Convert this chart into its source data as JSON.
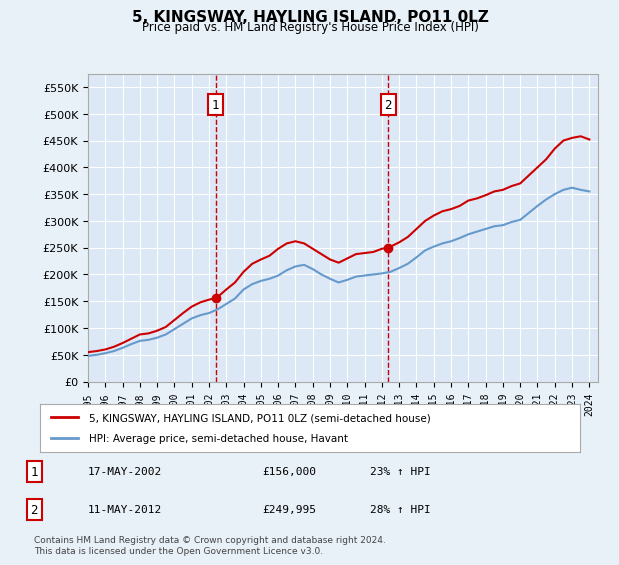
{
  "title": "5, KINGSWAY, HAYLING ISLAND, PO11 0LZ",
  "subtitle": "Price paid vs. HM Land Registry's House Price Index (HPI)",
  "background_color": "#e8f0f8",
  "plot_bg_color": "#dce8f5",
  "ylim": [
    0,
    575000
  ],
  "yticks": [
    0,
    50000,
    100000,
    150000,
    200000,
    250000,
    300000,
    350000,
    400000,
    450000,
    500000,
    550000
  ],
  "ytick_labels": [
    "£0",
    "£50K",
    "£100K",
    "£150K",
    "£200K",
    "£250K",
    "£300K",
    "£350K",
    "£400K",
    "£450K",
    "£500K",
    "£550K"
  ],
  "legend_label_red": "5, KINGSWAY, HAYLING ISLAND, PO11 0LZ (semi-detached house)",
  "legend_label_blue": "HPI: Average price, semi-detached house, Havant",
  "footnote": "Contains HM Land Registry data © Crown copyright and database right 2024.\nThis data is licensed under the Open Government Licence v3.0.",
  "marker1_date": "17-MAY-2002",
  "marker1_price": "£156,000",
  "marker1_hpi": "23% ↑ HPI",
  "marker1_year": 2002.38,
  "marker1_value": 156000,
  "marker2_date": "11-MAY-2012",
  "marker2_price": "£249,995",
  "marker2_hpi": "28% ↑ HPI",
  "marker2_year": 2012.37,
  "marker2_value": 249995,
  "red_line_color": "#cc0000",
  "blue_line_color": "#6699cc",
  "red_series_x": [
    1995.0,
    1995.5,
    1996.0,
    1996.5,
    1997.0,
    1997.5,
    1998.0,
    1998.5,
    1999.0,
    1999.5,
    2000.0,
    2000.5,
    2001.0,
    2001.5,
    2002.0,
    2002.38,
    2002.5,
    2003.0,
    2003.5,
    2004.0,
    2004.5,
    2005.0,
    2005.5,
    2006.0,
    2006.5,
    2007.0,
    2007.5,
    2008.0,
    2008.5,
    2009.0,
    2009.5,
    2010.0,
    2010.5,
    2011.0,
    2011.5,
    2012.0,
    2012.37,
    2012.5,
    2013.0,
    2013.5,
    2014.0,
    2014.5,
    2015.0,
    2015.5,
    2016.0,
    2016.5,
    2017.0,
    2017.5,
    2018.0,
    2018.5,
    2019.0,
    2019.5,
    2020.0,
    2020.5,
    2021.0,
    2021.5,
    2022.0,
    2022.5,
    2023.0,
    2023.5,
    2024.0
  ],
  "red_series_y": [
    55000,
    57000,
    60000,
    65000,
    72000,
    80000,
    88000,
    90000,
    95000,
    102000,
    115000,
    128000,
    140000,
    148000,
    153000,
    156000,
    158000,
    172000,
    185000,
    205000,
    220000,
    228000,
    235000,
    248000,
    258000,
    262000,
    258000,
    248000,
    238000,
    228000,
    222000,
    230000,
    238000,
    240000,
    242000,
    248000,
    249995,
    252000,
    260000,
    270000,
    285000,
    300000,
    310000,
    318000,
    322000,
    328000,
    338000,
    342000,
    348000,
    355000,
    358000,
    365000,
    370000,
    385000,
    400000,
    415000,
    435000,
    450000,
    455000,
    458000,
    452000
  ],
  "blue_series_x": [
    1995.0,
    1995.5,
    1996.0,
    1996.5,
    1997.0,
    1997.5,
    1998.0,
    1998.5,
    1999.0,
    1999.5,
    2000.0,
    2000.5,
    2001.0,
    2001.5,
    2002.0,
    2002.5,
    2003.0,
    2003.5,
    2004.0,
    2004.5,
    2005.0,
    2005.5,
    2006.0,
    2006.5,
    2007.0,
    2007.5,
    2008.0,
    2008.5,
    2009.0,
    2009.5,
    2010.0,
    2010.5,
    2011.0,
    2011.5,
    2012.0,
    2012.5,
    2013.0,
    2013.5,
    2014.0,
    2014.5,
    2015.0,
    2015.5,
    2016.0,
    2016.5,
    2017.0,
    2017.5,
    2018.0,
    2018.5,
    2019.0,
    2019.5,
    2020.0,
    2020.5,
    2021.0,
    2021.5,
    2022.0,
    2022.5,
    2023.0,
    2023.5,
    2024.0
  ],
  "blue_series_y": [
    48000,
    50000,
    53000,
    57000,
    63000,
    70000,
    76000,
    78000,
    82000,
    88000,
    98000,
    108000,
    118000,
    124000,
    128000,
    135000,
    145000,
    155000,
    172000,
    182000,
    188000,
    192000,
    198000,
    208000,
    215000,
    218000,
    210000,
    200000,
    192000,
    185000,
    190000,
    196000,
    198000,
    200000,
    202000,
    205000,
    212000,
    220000,
    232000,
    245000,
    252000,
    258000,
    262000,
    268000,
    275000,
    280000,
    285000,
    290000,
    292000,
    298000,
    302000,
    315000,
    328000,
    340000,
    350000,
    358000,
    362000,
    358000,
    355000
  ]
}
